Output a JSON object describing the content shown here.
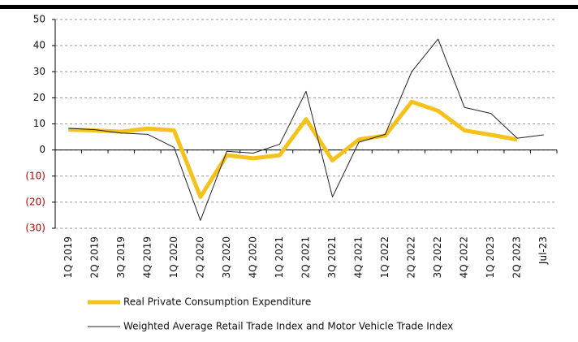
{
  "chart_data": {
    "type": "line",
    "categories": [
      "1Q 2019",
      "2Q 2019",
      "3Q 2019",
      "4Q 2019",
      "1Q 2020",
      "2Q 2020",
      "3Q 2020",
      "4Q 2020",
      "1Q 2021",
      "2Q 2021",
      "3Q 2021",
      "4Q 2021",
      "1Q 2022",
      "2Q 2022",
      "3Q 2022",
      "4Q 2022",
      "1Q 2023",
      "2Q 2023",
      "Jul-23"
    ],
    "series": [
      {
        "name": "Real Private Consumption Expenditure",
        "color": "#f5c21b",
        "width": 5,
        "values": [
          7.8,
          7.5,
          7.0,
          8.2,
          7.5,
          -18,
          -2,
          -3.2,
          -2,
          11.8,
          -4,
          4,
          5.5,
          18.5,
          15,
          7.5,
          5.8,
          4,
          null
        ]
      },
      {
        "name": "Weighted Average Retail Trade Index and Motor Vehicle Trade Index",
        "color": "#222222",
        "width": 1,
        "values": [
          8.3,
          7.8,
          6.5,
          6,
          1,
          -27,
          -0.5,
          -1.2,
          2.2,
          22.5,
          -18,
          3,
          6,
          30,
          42.5,
          16.3,
          14,
          4.5,
          5.8
        ]
      }
    ],
    "ylim": [
      -30,
      50
    ],
    "yticks": [
      {
        "value": -30,
        "label": "(30)"
      },
      {
        "value": -20,
        "label": "(20)"
      },
      {
        "value": -10,
        "label": "(10)"
      },
      0,
      10,
      20,
      30,
      40,
      50
    ],
    "grid": true,
    "negative_tick_color": "#c00000"
  }
}
